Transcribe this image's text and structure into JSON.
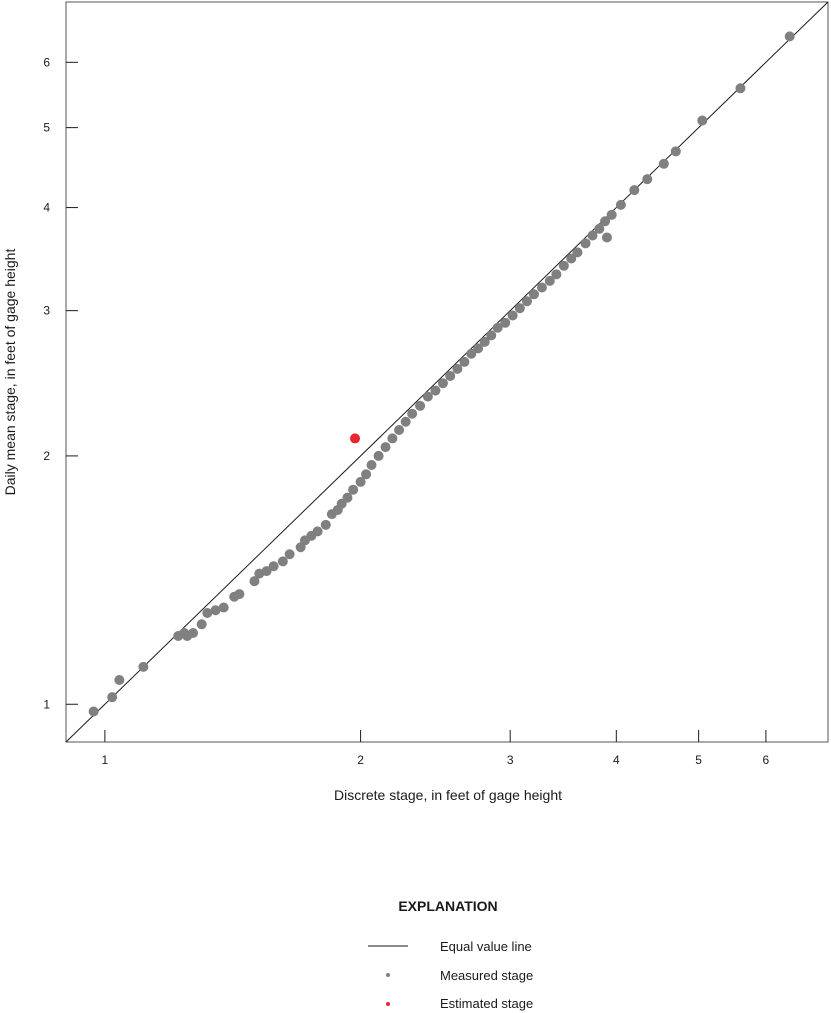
{
  "chart_data": {
    "type": "scatter",
    "x_scale": "log",
    "y_scale": "log",
    "xlim": [
      0.9,
      7.1
    ],
    "ylim": [
      0.9,
      7.1
    ],
    "xlabel": "Discrete stage, in feet of gage height",
    "ylabel": "Daily mean stage, in feet of gage height",
    "x_ticks": [
      1,
      2,
      3,
      4,
      5,
      6
    ],
    "y_ticks": [
      1,
      2,
      3,
      4,
      5,
      6
    ],
    "grid": false,
    "legend_position": "bottom-center",
    "reference_line": {
      "name": "Equal value line",
      "color": "#1a1a1a"
    },
    "series": [
      {
        "name": "Measured stage",
        "color": "#808080",
        "points": [
          [
            0.97,
            0.98
          ],
          [
            1.02,
            1.02
          ],
          [
            1.04,
            1.07
          ],
          [
            1.11,
            1.11
          ],
          [
            1.22,
            1.21
          ],
          [
            1.24,
            1.22
          ],
          [
            1.25,
            1.21
          ],
          [
            1.27,
            1.22
          ],
          [
            1.3,
            1.25
          ],
          [
            1.32,
            1.29
          ],
          [
            1.35,
            1.3
          ],
          [
            1.38,
            1.31
          ],
          [
            1.42,
            1.35
          ],
          [
            1.44,
            1.36
          ],
          [
            1.5,
            1.41
          ],
          [
            1.52,
            1.44
          ],
          [
            1.55,
            1.45
          ],
          [
            1.58,
            1.47
          ],
          [
            1.62,
            1.49
          ],
          [
            1.65,
            1.52
          ],
          [
            1.7,
            1.55
          ],
          [
            1.72,
            1.58
          ],
          [
            1.75,
            1.6
          ],
          [
            1.78,
            1.62
          ],
          [
            1.82,
            1.65
          ],
          [
            1.85,
            1.7
          ],
          [
            1.88,
            1.72
          ],
          [
            1.9,
            1.75
          ],
          [
            1.93,
            1.78
          ],
          [
            1.96,
            1.82
          ],
          [
            2.0,
            1.86
          ],
          [
            2.03,
            1.9
          ],
          [
            2.06,
            1.95
          ],
          [
            2.1,
            2.0
          ],
          [
            2.14,
            2.05
          ],
          [
            2.18,
            2.1
          ],
          [
            2.22,
            2.15
          ],
          [
            2.26,
            2.2
          ],
          [
            2.3,
            2.25
          ],
          [
            2.35,
            2.3
          ],
          [
            2.4,
            2.36
          ],
          [
            2.45,
            2.4
          ],
          [
            2.5,
            2.45
          ],
          [
            2.55,
            2.5
          ],
          [
            2.6,
            2.55
          ],
          [
            2.65,
            2.6
          ],
          [
            2.7,
            2.66
          ],
          [
            2.75,
            2.7
          ],
          [
            2.8,
            2.75
          ],
          [
            2.85,
            2.8
          ],
          [
            2.9,
            2.86
          ],
          [
            2.96,
            2.9
          ],
          [
            3.02,
            2.96
          ],
          [
            3.08,
            3.02
          ],
          [
            3.14,
            3.08
          ],
          [
            3.2,
            3.14
          ],
          [
            3.27,
            3.2
          ],
          [
            3.34,
            3.26
          ],
          [
            3.4,
            3.32
          ],
          [
            3.47,
            3.4
          ],
          [
            3.54,
            3.47
          ],
          [
            3.6,
            3.53
          ],
          [
            3.68,
            3.62
          ],
          [
            3.75,
            3.7
          ],
          [
            3.82,
            3.77
          ],
          [
            3.88,
            3.85
          ],
          [
            3.95,
            3.92
          ],
          [
            3.9,
            3.68
          ],
          [
            4.05,
            4.03
          ],
          [
            4.2,
            4.2
          ],
          [
            4.35,
            4.33
          ],
          [
            4.55,
            4.52
          ],
          [
            4.7,
            4.68
          ],
          [
            5.05,
            5.1
          ],
          [
            5.6,
            5.58
          ],
          [
            6.4,
            6.45
          ]
        ]
      },
      {
        "name": "Estimated stage",
        "color": "#e8262d",
        "points": [
          [
            1.97,
            2.1
          ]
        ]
      }
    ]
  },
  "legend": {
    "title": "EXPLANATION",
    "items": [
      {
        "label": "Equal value line",
        "kind": "line"
      },
      {
        "label": "Measured stage",
        "kind": "dot",
        "color": "#808080"
      },
      {
        "label": "Estimated stage",
        "kind": "dot",
        "color": "#e8262d"
      }
    ]
  }
}
